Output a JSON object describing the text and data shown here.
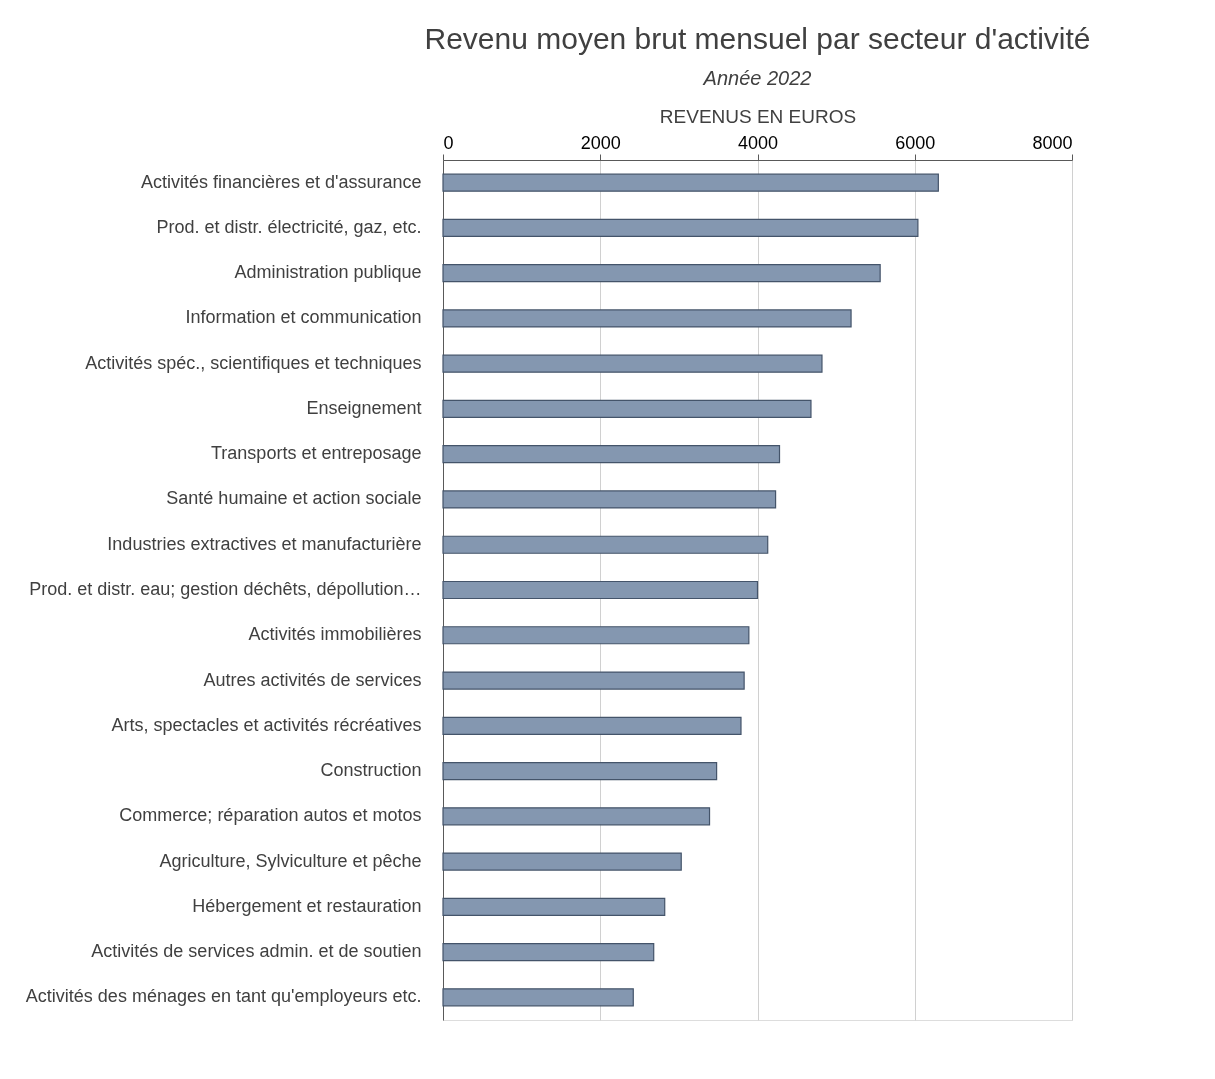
{
  "chart_data": {
    "type": "bar",
    "orientation": "horizontal",
    "title": "Revenu moyen brut mensuel par secteur d'activité",
    "subtitle": "Année 2022",
    "xlabel": "REVENUS EN EUROS",
    "categories": [
      "Activités financières et d'assurance",
      "Prod. et distr. électricité, gaz, etc.",
      "Administration publique",
      "Information et communication",
      "Activités spéc., scientifiques et techniques",
      "Enseignement",
      "Transports et entreposage",
      "Santé humaine et action sociale",
      "Industries extractives et manufacturière",
      "Prod. et distr. eau; gestion déchêts, dépollution…",
      "Activités immobilières",
      "Autres activités de services",
      "Arts, spectacles et activités récréatives",
      "Construction",
      "Commerce; réparation autos et motos",
      "Agriculture, Sylviculture et pêche",
      "Hébergement et restauration",
      "Activités de services admin. et de soutien",
      "Activités des ménages en tant qu'employeurs etc."
    ],
    "values": [
      6300,
      6040,
      5560,
      5190,
      4820,
      4680,
      4280,
      4230,
      4130,
      4000,
      3890,
      3830,
      3790,
      3480,
      3390,
      3030,
      2820,
      2680,
      2420
    ],
    "color": "#8497b0",
    "xlim": [
      0,
      8000
    ],
    "xticks": [
      0,
      2000,
      4000,
      6000,
      8000
    ],
    "grid": "x"
  }
}
